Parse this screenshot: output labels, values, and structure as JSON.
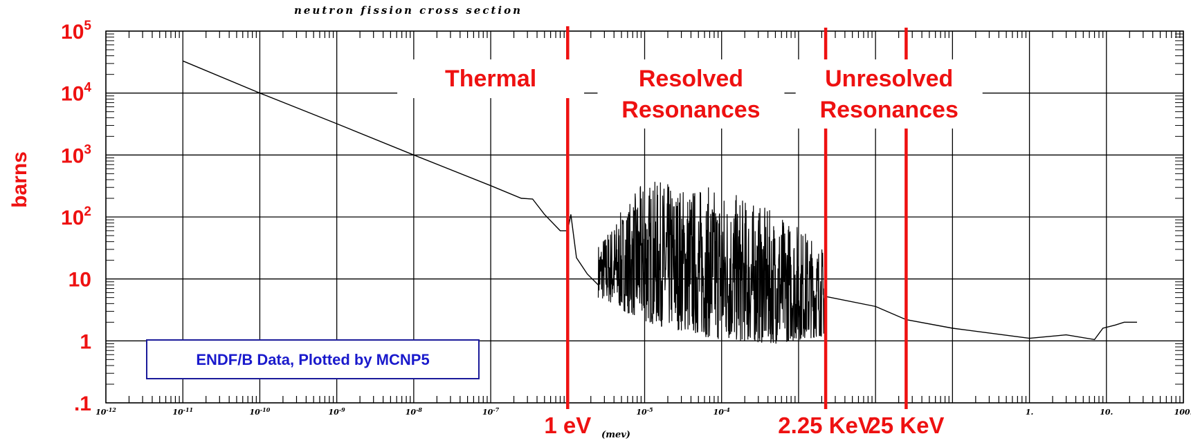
{
  "chart_data": {
    "type": "line",
    "title": "neutron fission cross section",
    "xlabel": "(mev)",
    "ylabel": "barns",
    "x_scale": "log",
    "y_scale": "log",
    "xlim": [
      1e-12,
      100
    ],
    "ylim": [
      0.1,
      100000
    ],
    "grid": true,
    "x_tick_labels": [
      {
        "base": "10",
        "exp": "-12",
        "v": 1e-12
      },
      {
        "base": "10",
        "exp": "-11",
        "v": 1e-11
      },
      {
        "base": "10",
        "exp": "-10",
        "v": 1e-10
      },
      {
        "base": "10",
        "exp": "-9",
        "v": 1e-09
      },
      {
        "base": "10",
        "exp": "-8",
        "v": 1e-08
      },
      {
        "base": "10",
        "exp": "-7",
        "v": 1e-07
      },
      {
        "base": "10",
        "exp": "-5",
        "v": 1e-05
      },
      {
        "base": "10",
        "exp": "-4",
        "v": 0.0001
      },
      {
        "base": "1.",
        "exp": "",
        "v": 1
      },
      {
        "base": "10.",
        "exp": "",
        "v": 10
      },
      {
        "base": "100.",
        "exp": "",
        "v": 100
      }
    ],
    "y_tick_labels": [
      {
        "base": "10",
        "exp": "5",
        "v": 100000
      },
      {
        "base": "10",
        "exp": "4",
        "v": 10000
      },
      {
        "base": "10",
        "exp": "3",
        "v": 1000
      },
      {
        "base": "10",
        "exp": "2",
        "v": 100
      },
      {
        "base": "10",
        "exp": "",
        "v": 10
      },
      {
        "base": "1",
        "exp": "",
        "v": 1
      },
      {
        "base": ".1",
        "exp": "",
        "v": 0.1
      }
    ],
    "series": [
      {
        "points": [
          [
            1e-11,
            33000
          ],
          [
            1e-10,
            10000
          ],
          [
            1e-09,
            3200
          ],
          [
            1e-08,
            1000
          ],
          [
            1e-07,
            320
          ],
          [
            2.5e-07,
            200
          ],
          [
            3.5e-07,
            195
          ],
          [
            5e-07,
            110
          ],
          [
            8e-07,
            60
          ],
          [
            1e-06,
            60
          ],
          [
            1.1e-06,
            110
          ],
          [
            1.3e-06,
            22
          ],
          [
            1.8e-06,
            12
          ],
          [
            2.5e-06,
            8
          ],
          [
            1e-05,
            9
          ],
          [
            0.00225,
            5.2
          ],
          [
            0.01,
            3.6
          ],
          [
            0.025,
            2.2
          ],
          [
            0.1,
            1.6
          ],
          [
            1,
            1.1
          ],
          [
            3,
            1.25
          ],
          [
            7,
            1.05
          ],
          [
            9,
            1.6
          ],
          [
            13,
            1.8
          ],
          [
            17,
            2.0
          ],
          [
            25,
            2.0
          ]
        ],
        "resonance_band": {
          "x_range": [
            2.5e-06,
            0.00225
          ],
          "upper": [
            [
              2.5e-06,
              40
            ],
            [
              1e-05,
              400
            ],
            [
              0.0001,
              300
            ],
            [
              0.001,
              80
            ],
            [
              0.00225,
              30
            ]
          ],
          "lower": [
            [
              2.5e-06,
              5
            ],
            [
              1e-05,
              2
            ],
            [
              0.0001,
              1
            ],
            [
              0.0005,
              0.9
            ],
            [
              0.00225,
              1.2
            ]
          ]
        }
      }
    ],
    "annotations": {
      "regions": [
        {
          "lines": [
            "Thermal"
          ],
          "x": 1e-07
        },
        {
          "lines": [
            "Resolved",
            "Resonances"
          ],
          "x": 4e-05
        },
        {
          "lines": [
            "Unresolved",
            "Resonances"
          ],
          "x": 0.015
        }
      ],
      "markers": [
        {
          "label": "1 eV",
          "x": 1e-06
        },
        {
          "label": "2.25 KeV",
          "x": 0.00225
        },
        {
          "label": "25 KeV",
          "x": 0.025
        }
      ],
      "source_box": "ENDF/B Data, Plotted by MCNP5"
    }
  }
}
